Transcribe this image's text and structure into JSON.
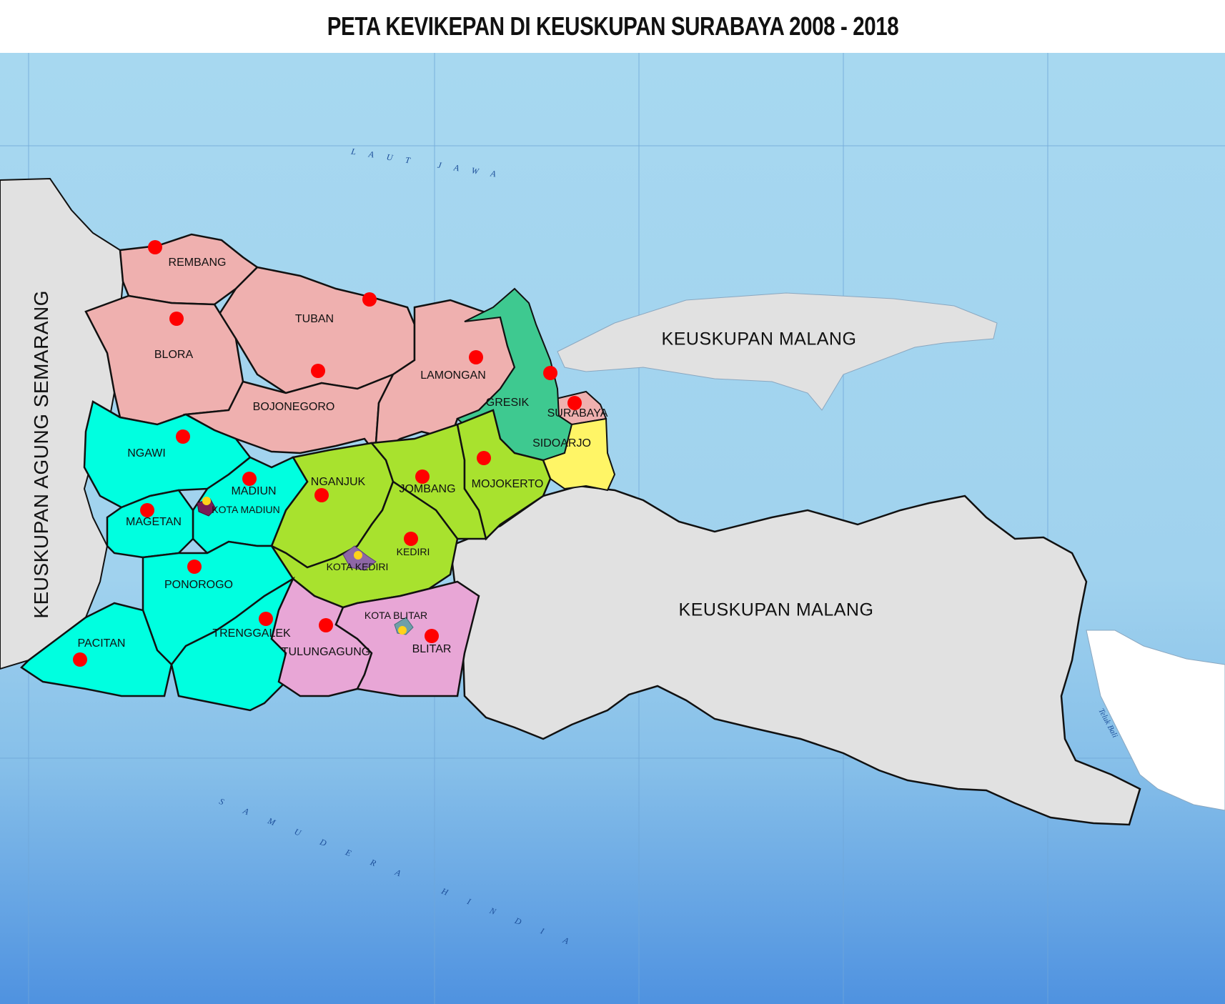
{
  "title": "PETA KEVIKEPAN DI KEUSKUPAN SURABAYA 2008 - 2018",
  "colors": {
    "sea": "#a6d6ef",
    "deep_sea": "#5b9ee0",
    "outside": "#e1e1e1",
    "bojonegoro_group": "#efb0af",
    "madiun_group": "#00ffe0",
    "kediri_group": "#a8e22e",
    "blitar_group": "#e8a6d6",
    "gresik_group": "#3ec990",
    "sidoarjo_group": "#fff566",
    "marker": "#ff0000",
    "city_marker": "#ffd21a"
  },
  "labels": {
    "side_diocese": "KEUSKUPAN AGUNG SEMARANG",
    "malang_north": "KEUSKUPAN MALANG",
    "malang_south": "KEUSKUPAN MALANG",
    "laut_jawa": "LAUT JAWA",
    "samudera_hindia": "SAMUDERA HINDIA",
    "teluk_bali": "Teluk Bali"
  },
  "regions": [
    {
      "id": "rembang",
      "name": "REMBANG",
      "group": "bojonegoro_group"
    },
    {
      "id": "tuban",
      "name": "TUBAN",
      "group": "bojonegoro_group"
    },
    {
      "id": "blora",
      "name": "BLORA",
      "group": "bojonegoro_group"
    },
    {
      "id": "bojonegoro",
      "name": "BOJONEGORO",
      "group": "bojonegoro_group"
    },
    {
      "id": "lamongan",
      "name": "LAMONGAN",
      "group": "bojonegoro_group"
    },
    {
      "id": "gresik",
      "name": "GRESIK",
      "group": "gresik_group"
    },
    {
      "id": "surabaya",
      "name": "SURABAYA",
      "group": "bojonegoro_group"
    },
    {
      "id": "sidoarjo",
      "name": "SIDOARJO",
      "group": "sidoarjo_group"
    },
    {
      "id": "ngawi",
      "name": "NGAWI",
      "group": "madiun_group"
    },
    {
      "id": "madiun",
      "name": "MADIUN",
      "group": "madiun_group"
    },
    {
      "id": "kota-madiun",
      "name": "KOTA MADIUN",
      "group": "madiun_group"
    },
    {
      "id": "magetan",
      "name": "MAGETAN",
      "group": "madiun_group"
    },
    {
      "id": "ponorogo",
      "name": "PONOROGO",
      "group": "madiun_group"
    },
    {
      "id": "pacitan",
      "name": "PACITAN",
      "group": "madiun_group"
    },
    {
      "id": "trenggalek",
      "name": "TRENGGALEK",
      "group": "madiun_group"
    },
    {
      "id": "nganjuk",
      "name": "NGANJUK",
      "group": "kediri_group"
    },
    {
      "id": "jombang",
      "name": "JOMBANG",
      "group": "kediri_group"
    },
    {
      "id": "mojokerto",
      "name": "MOJOKERTO",
      "group": "kediri_group"
    },
    {
      "id": "kediri",
      "name": "KEDIRI",
      "group": "kediri_group"
    },
    {
      "id": "kota-kediri",
      "name": "KOTA KEDIRI",
      "group": "kediri_group"
    },
    {
      "id": "tulungagung",
      "name": "TULUNGAGUNG",
      "group": "blitar_group"
    },
    {
      "id": "blitar",
      "name": "BLITAR",
      "group": "blitar_group"
    },
    {
      "id": "kota-blitar",
      "name": "KOTA BLITAR",
      "group": "blitar_group"
    }
  ]
}
